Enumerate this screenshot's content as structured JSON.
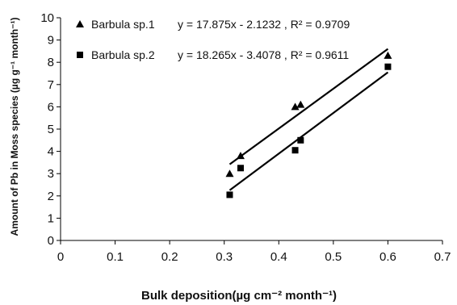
{
  "chart_data": {
    "type": "scatter",
    "xlabel": "Bulk deposition(µg cm⁻² month⁻¹)",
    "ylabel": "Amount of Pb in Moss species (µg g⁻¹ month⁻¹)",
    "xlim": [
      0,
      0.7
    ],
    "ylim": [
      0,
      10
    ],
    "x_ticks": [
      "0",
      "0.1",
      "0.2",
      "0.3",
      "0.4",
      "0.5",
      "0.6",
      "0.7"
    ],
    "y_ticks": [
      "0",
      "1",
      "2",
      "3",
      "4",
      "5",
      "6",
      "7",
      "8",
      "9",
      "10"
    ],
    "grid": false,
    "legend_position": "top-left",
    "series": [
      {
        "name": "Barbula sp.1",
        "marker": "triangle",
        "equation": "y = 17.875x - 2.1232 , R² = 0.9709",
        "slope": 17.875,
        "intercept": -2.1232,
        "x": [
          0.31,
          0.33,
          0.43,
          0.44,
          0.6
        ],
        "y": [
          3.0,
          3.8,
          6.0,
          6.1,
          8.3
        ],
        "color": "#000000"
      },
      {
        "name": "Barbula sp.2",
        "marker": "square",
        "equation": "y = 18.265x - 3.4078 , R² = 0.9611",
        "slope": 18.265,
        "intercept": -3.4078,
        "x": [
          0.31,
          0.33,
          0.43,
          0.44,
          0.6
        ],
        "y": [
          2.05,
          3.25,
          4.05,
          4.5,
          7.8
        ],
        "color": "#000000"
      }
    ],
    "trend_range": [
      0.31,
      0.6
    ]
  }
}
